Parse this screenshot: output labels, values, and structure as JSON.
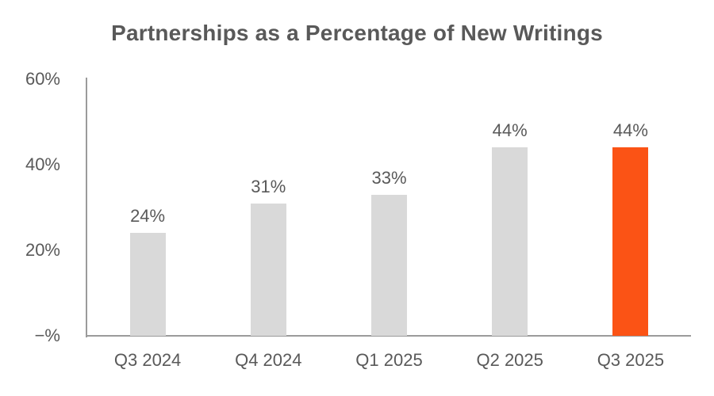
{
  "chart_data": {
    "type": "bar",
    "title": "Partnerships as a Percentage of New Writings",
    "categories": [
      "Q3 2024",
      "Q4 2024",
      "Q1 2025",
      "Q2 2025",
      "Q3 2025"
    ],
    "values": [
      24,
      31,
      33,
      44,
      44
    ],
    "value_labels": [
      "24%",
      "31%",
      "33%",
      "44%",
      "44%"
    ],
    "bar_colors": [
      "#D9D9D9",
      "#D9D9D9",
      "#D9D9D9",
      "#D9D9D9",
      "#FB5315"
    ],
    "highlighted_category": "Q3 2025",
    "xlabel": "",
    "ylabel": "",
    "ylim": [
      0,
      60
    ],
    "y_ticks": [
      {
        "value": 60,
        "label": "60%"
      },
      {
        "value": 40,
        "label": "40%"
      },
      {
        "value": 20,
        "label": "20%"
      },
      {
        "value": 0,
        "label": "−%"
      }
    ],
    "grid": false,
    "legend": false,
    "colors": {
      "bar_default": "#D9D9D9",
      "bar_highlight": "#FB5315",
      "text": "#595959",
      "axis": "#9B9B9B",
      "background": "#FFFFFF"
    }
  }
}
